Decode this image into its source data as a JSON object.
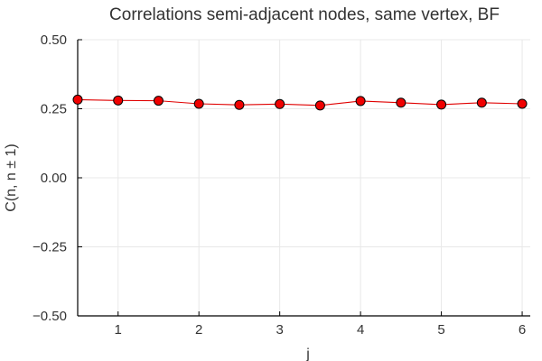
{
  "chart_data": {
    "type": "line",
    "title": "Correlations semi-adjacent nodes, same vertex, BF",
    "xlabel": "j",
    "ylabel": "C(n, n ± 1)",
    "xlim": [
      0.5,
      6.1
    ],
    "ylim": [
      -0.5,
      0.5
    ],
    "xticks": [
      1,
      2,
      3,
      4,
      5,
      6
    ],
    "xtick_labels": [
      "1",
      "2",
      "3",
      "4",
      "5",
      "6"
    ],
    "yticks": [
      -0.5,
      -0.25,
      0,
      0.25,
      0.5
    ],
    "ytick_labels": [
      "−0.50",
      "−0.25",
      "0.00",
      "0.25",
      "0.50"
    ],
    "grid": true,
    "legend": "none",
    "series": [
      {
        "color": "#e00000",
        "marker_color": "#f00000",
        "x": [
          0.5,
          1.0,
          1.5,
          2.0,
          2.5,
          3.0,
          3.5,
          4.0,
          4.5,
          5.0,
          5.5,
          6.0
        ],
        "y": [
          0.283,
          0.28,
          0.279,
          0.268,
          0.264,
          0.267,
          0.262,
          0.278,
          0.272,
          0.265,
          0.272,
          0.268
        ]
      }
    ]
  }
}
